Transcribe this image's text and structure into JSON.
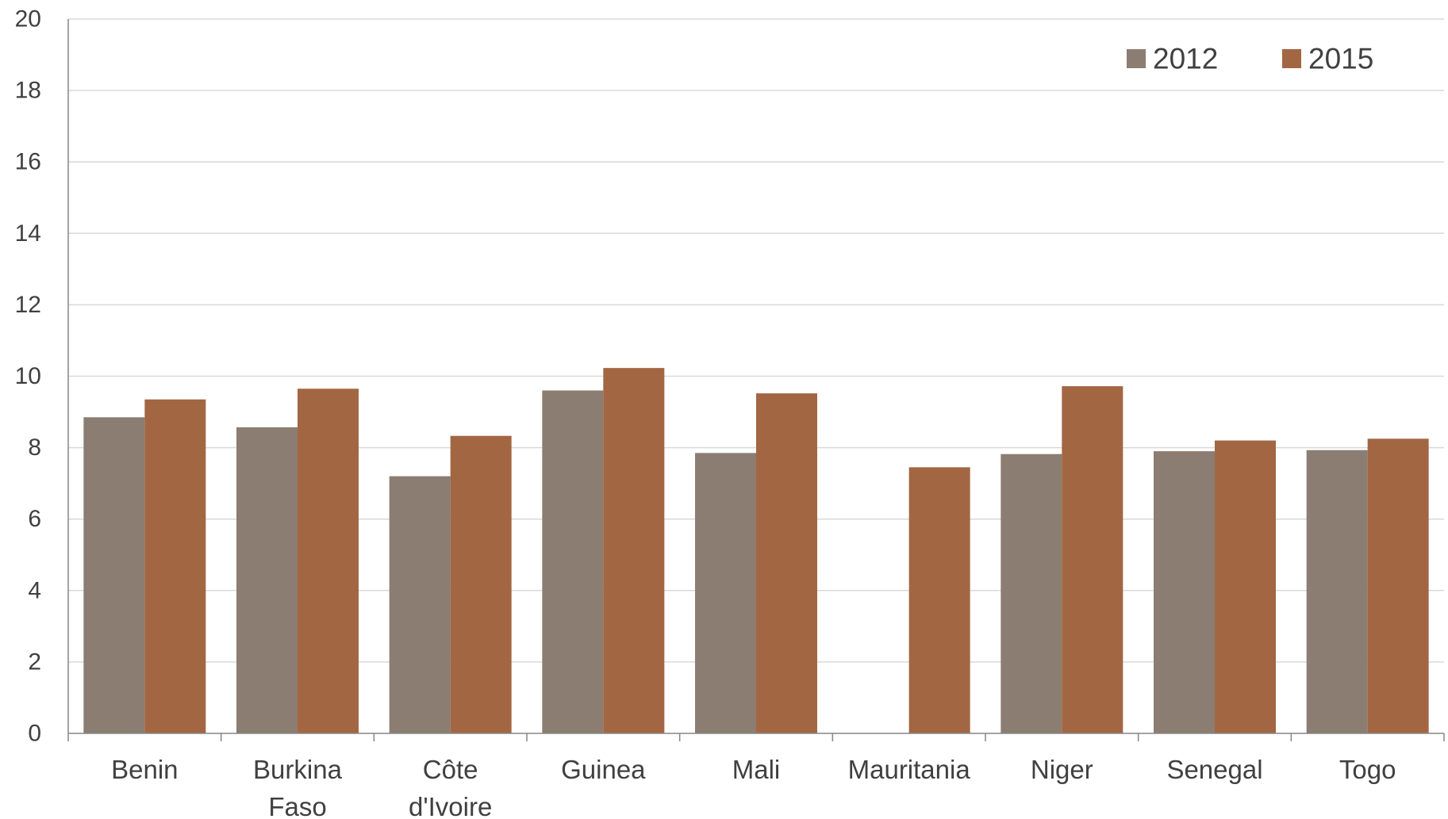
{
  "chart_data": {
    "type": "bar",
    "categories": [
      "Benin",
      "Burkina Faso",
      "Côte d'Ivoire",
      "Guinea",
      "Mali",
      "Mauritania",
      "Niger",
      "Senegal",
      "Togo"
    ],
    "category_lines": [
      [
        "Benin"
      ],
      [
        "Burkina",
        "Faso"
      ],
      [
        "Côte",
        "d'Ivoire"
      ],
      [
        "Guinea"
      ],
      [
        "Mali"
      ],
      [
        "Mauritania"
      ],
      [
        "Niger"
      ],
      [
        "Senegal"
      ],
      [
        "Togo"
      ]
    ],
    "series": [
      {
        "name": "2012",
        "color": "#8c7d72",
        "values": [
          8.85,
          8.57,
          7.2,
          9.6,
          7.85,
          null,
          7.82,
          7.9,
          7.93
        ]
      },
      {
        "name": "2015",
        "color": "#a36643",
        "values": [
          9.35,
          9.65,
          8.33,
          10.23,
          9.52,
          7.45,
          9.72,
          8.2,
          8.25
        ]
      }
    ],
    "ylim": [
      0,
      20
    ],
    "yticks": [
      0,
      2,
      4,
      6,
      8,
      10,
      12,
      14,
      16,
      18,
      20
    ],
    "grid": true,
    "legend_position": "top-right",
    "title": "",
    "xlabel": "",
    "ylabel": ""
  }
}
